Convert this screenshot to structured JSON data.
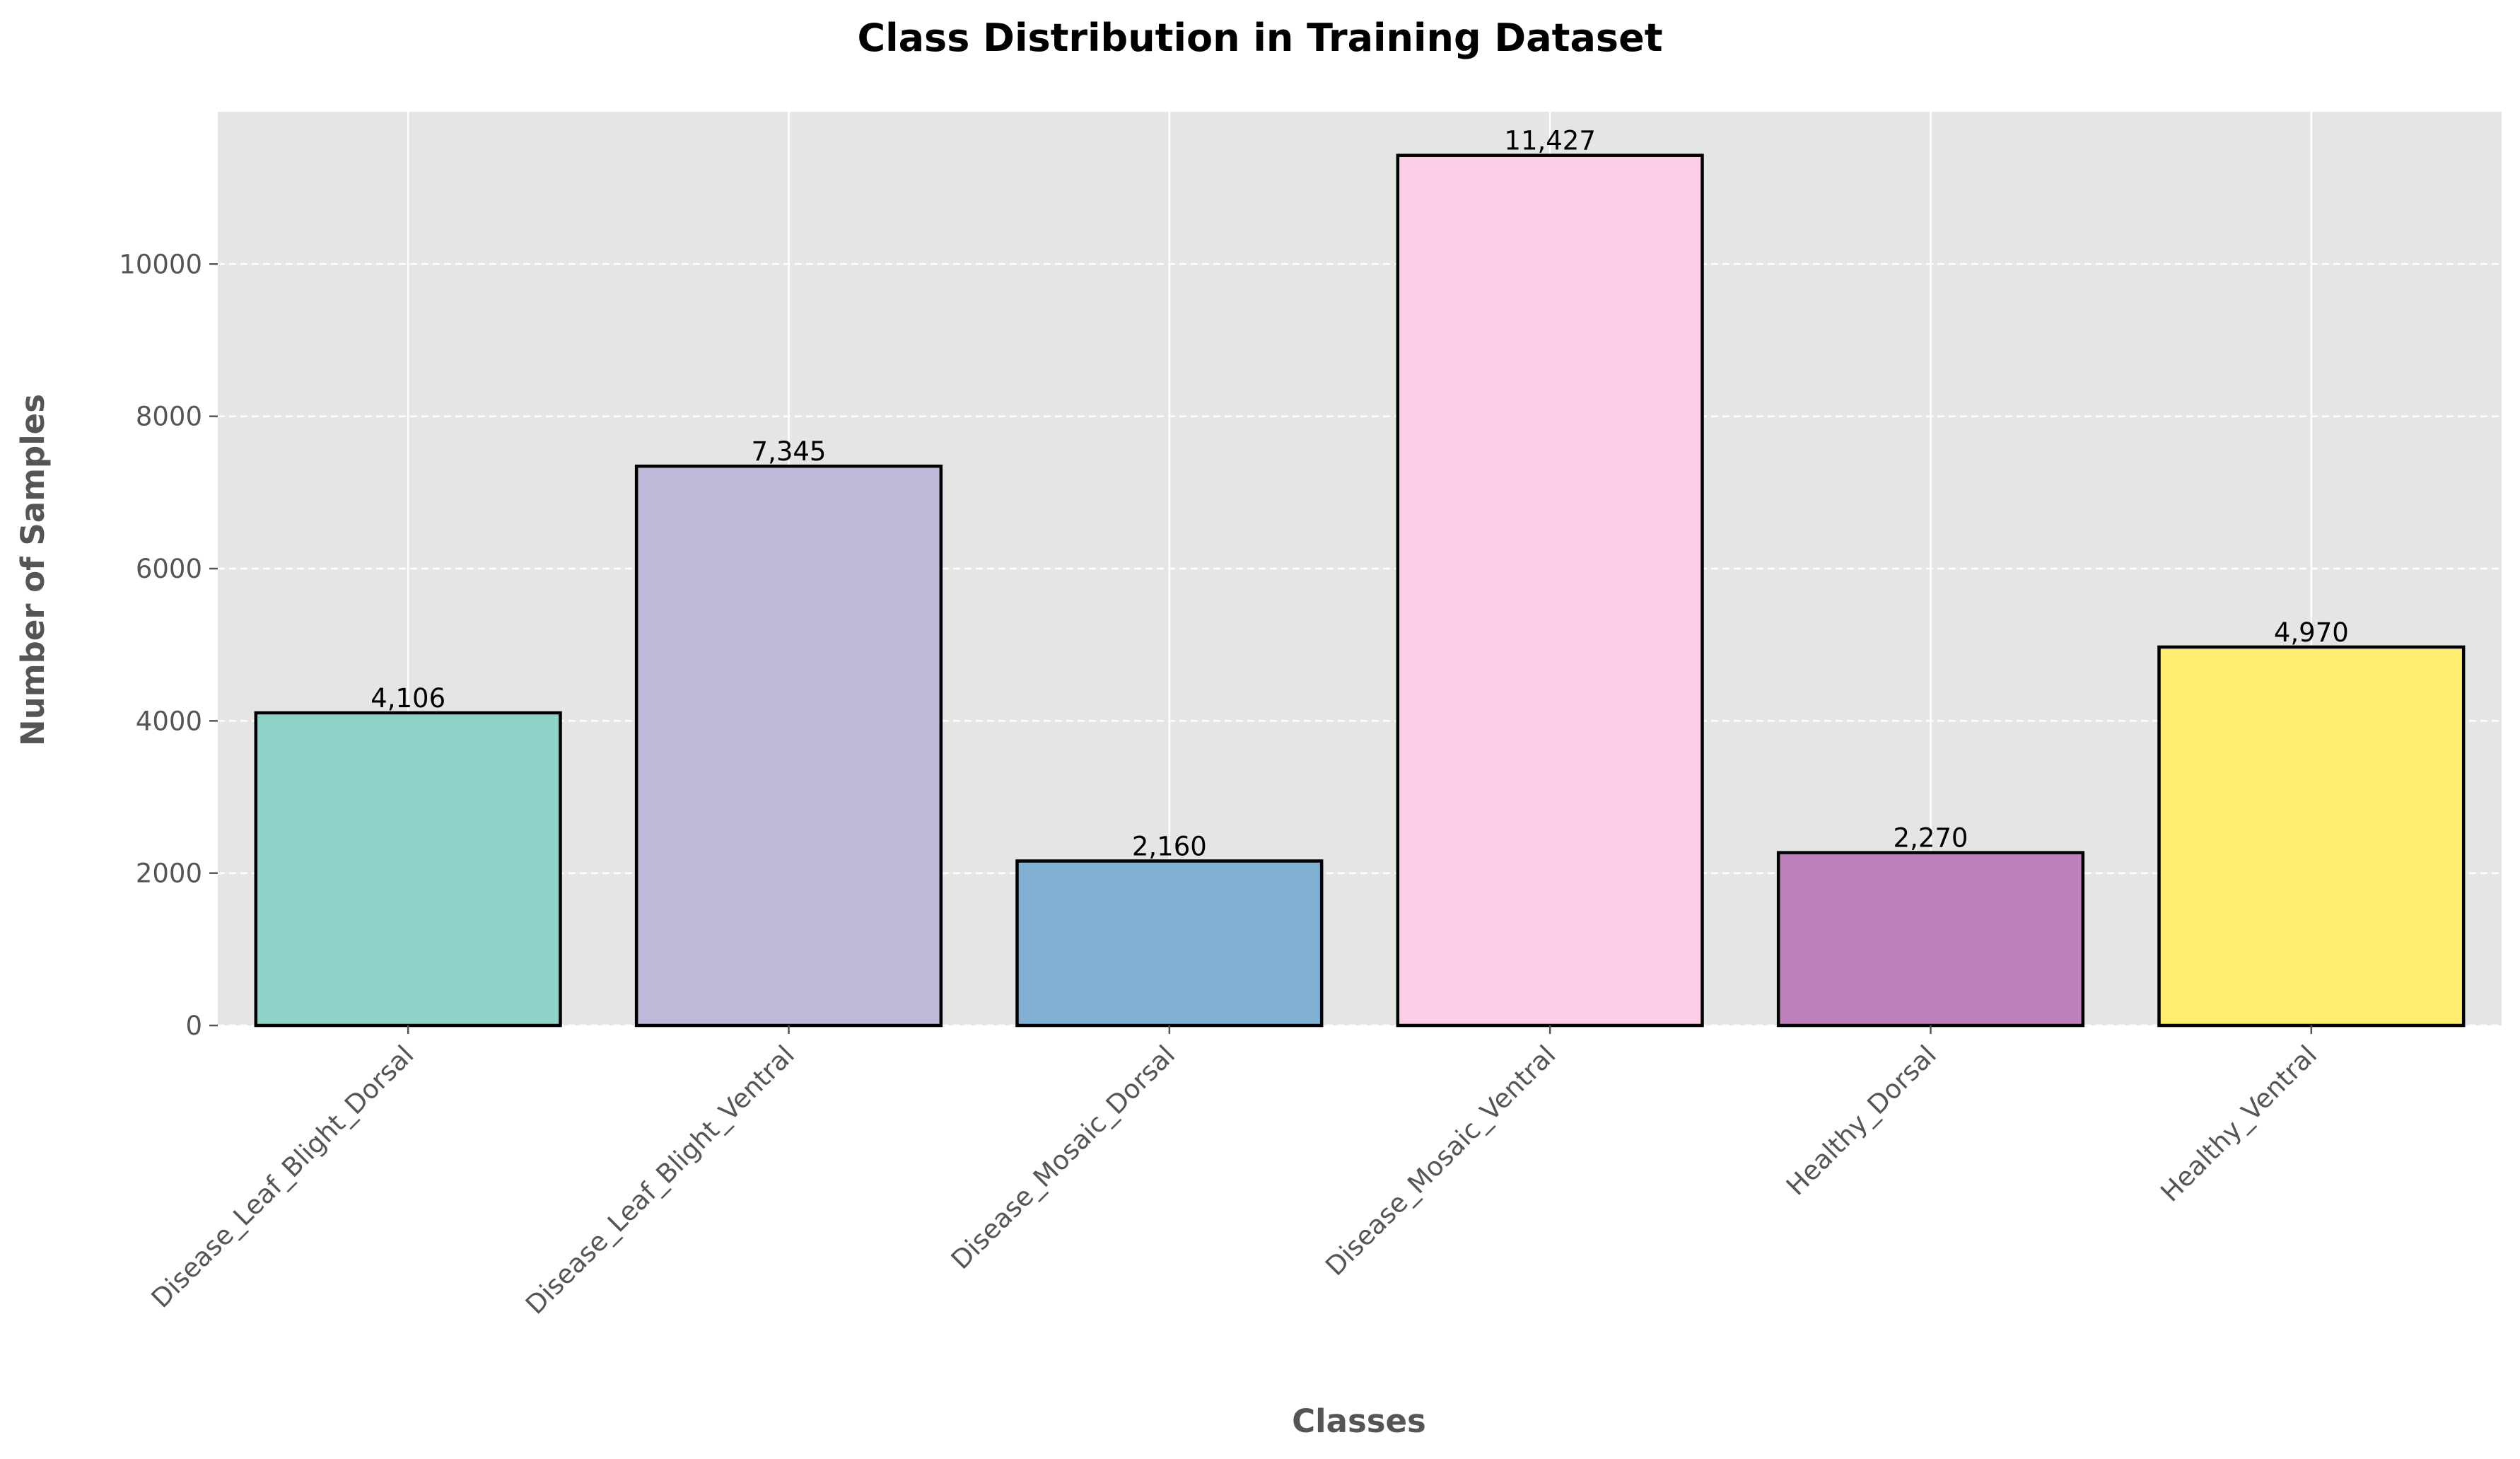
{
  "chart_data": {
    "type": "bar",
    "title": "Class Distribution in Training Dataset",
    "xlabel": "Classes",
    "ylabel": "Number of Samples",
    "categories": [
      "Disease_Leaf_Blight_Dorsal",
      "Disease_Leaf_Blight_Ventral",
      "Disease_Mosaic_Dorsal",
      "Disease_Mosaic_Ventral",
      "Healthy_Dorsal",
      "Healthy_Ventral"
    ],
    "values": [
      4106,
      7345,
      2160,
      11427,
      2270,
      4970
    ],
    "data_labels": [
      "4,106",
      "7,345",
      "2,160",
      "11,427",
      "2,270",
      "4,970"
    ],
    "colors": [
      "#8ed3c7",
      "#bebad9",
      "#80b1d3",
      "#fdcce5",
      "#bc80bd",
      "#ffed6f"
    ],
    "ylim": [
      0,
      12000
    ],
    "yticks": [
      0,
      2000,
      4000,
      6000,
      8000,
      10000
    ],
    "grid": true,
    "background": "#e5e5e5"
  }
}
